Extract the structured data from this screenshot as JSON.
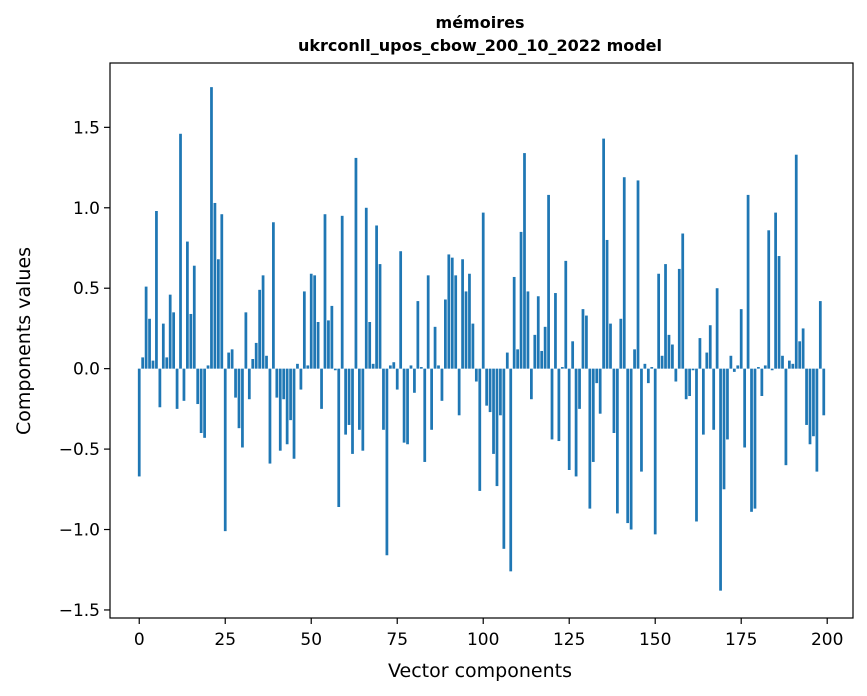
{
  "chart_data": {
    "type": "bar",
    "title": "mémoires",
    "subtitle": "ukrconll_upos_cbow_200_10_2022 model",
    "xlabel": "Vector components",
    "ylabel": "Components values",
    "xlim": [
      -8.5,
      207.5
    ],
    "ylim": [
      -1.55,
      1.9
    ],
    "xticks": [
      0,
      25,
      50,
      75,
      100,
      125,
      150,
      175,
      200
    ],
    "xtick_labels": [
      "0",
      "25",
      "50",
      "75",
      "100",
      "125",
      "150",
      "175",
      "200"
    ],
    "yticks": [
      -1.5,
      -1.0,
      -0.5,
      0.0,
      0.5,
      1.0,
      1.5
    ],
    "ytick_labels": [
      "−1.5",
      "−1.0",
      "−0.5",
      "0.0",
      "0.5",
      "1.0",
      "1.5"
    ],
    "grid": false,
    "bar_color": "#1f77b4",
    "values": [
      -0.67,
      0.07,
      0.51,
      0.31,
      0.05,
      0.98,
      -0.24,
      0.28,
      0.07,
      0.46,
      0.35,
      -0.25,
      1.46,
      -0.2,
      0.79,
      0.34,
      0.64,
      -0.22,
      -0.4,
      -0.43,
      0.02,
      1.75,
      1.03,
      0.68,
      0.96,
      -1.01,
      0.1,
      0.12,
      -0.18,
      -0.37,
      -0.49,
      0.35,
      -0.19,
      0.06,
      0.16,
      0.49,
      0.58,
      0.08,
      -0.59,
      0.91,
      -0.18,
      -0.51,
      -0.19,
      -0.47,
      -0.32,
      -0.56,
      0.03,
      -0.13,
      0.48,
      0.02,
      0.59,
      0.58,
      0.29,
      -0.25,
      0.96,
      0.3,
      0.39,
      -0.01,
      -0.86,
      0.95,
      -0.41,
      -0.35,
      -0.53,
      1.31,
      -0.38,
      -0.51,
      1.0,
      0.29,
      0.03,
      0.89,
      0.65,
      -0.38,
      -1.16,
      0.02,
      0.04,
      -0.13,
      0.73,
      -0.46,
      -0.47,
      0.02,
      -0.15,
      0.42,
      0.01,
      -0.58,
      0.58,
      -0.38,
      0.26,
      0.02,
      -0.2,
      0.43,
      0.71,
      0.69,
      0.58,
      -0.29,
      0.68,
      0.48,
      0.59,
      0.28,
      -0.08,
      -0.76,
      0.97,
      -0.23,
      -0.27,
      -0.53,
      -0.73,
      -0.29,
      -1.12,
      0.1,
      -1.26,
      0.57,
      0.12,
      0.85,
      1.34,
      0.48,
      -0.19,
      0.21,
      0.45,
      0.11,
      0.26,
      1.08,
      -0.44,
      0.47,
      -0.45,
      0.01,
      0.67,
      -0.63,
      0.17,
      -0.67,
      -0.25,
      0.37,
      0.33,
      -0.87,
      -0.58,
      -0.09,
      -0.28,
      1.43,
      0.8,
      0.28,
      -0.4,
      -0.9,
      0.31,
      1.19,
      -0.96,
      -1.0,
      0.12,
      1.17,
      -0.64,
      0.03,
      -0.09,
      0.01,
      -1.03,
      0.59,
      0.08,
      0.65,
      0.21,
      0.15,
      -0.08,
      0.62,
      0.84,
      -0.19,
      -0.17,
      -0.01,
      -0.95,
      0.19,
      -0.41,
      0.1,
      0.27,
      -0.38,
      0.5,
      -1.38,
      -0.75,
      -0.44,
      0.08,
      -0.02,
      0.02,
      0.37,
      -0.49,
      1.08,
      -0.89,
      -0.87,
      0.01,
      -0.17,
      0.02,
      0.86,
      -0.01,
      0.97,
      0.7,
      0.08,
      -0.6,
      0.05,
      0.03,
      1.33,
      0.17,
      0.25,
      -0.35,
      -0.47,
      -0.42,
      -0.64,
      0.42,
      -0.29
    ]
  }
}
